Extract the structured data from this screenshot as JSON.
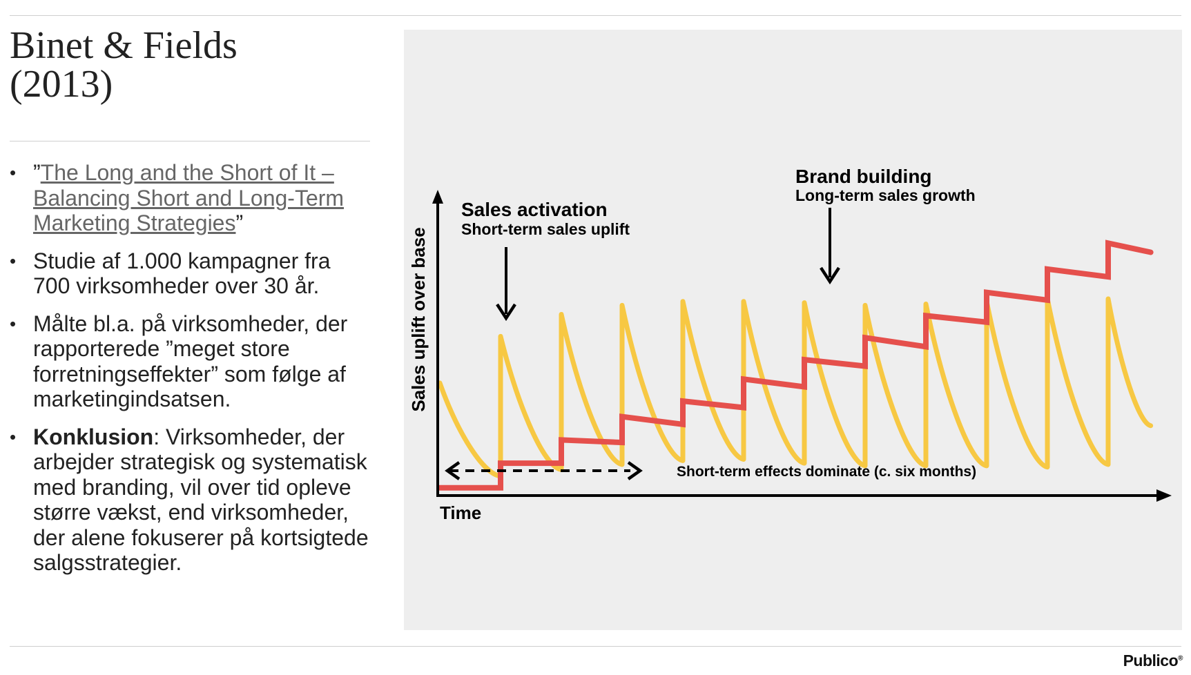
{
  "slide": {
    "title_line1": "Binet & Fields",
    "title_line2": "(2013)",
    "bullets": [
      {
        "open_quote": "”",
        "link_text": "The Long and the Short of It – Balancing Short and Long-Term Marketing Strategies",
        "close_quote": "”"
      },
      {
        "text": "Studie af 1.000 kampagner fra 700 virksomheder over 30 år."
      },
      {
        "text": "Målte bl.a. på virksomheder, der rapporterede ”meget store forretningseffekter” som følge af marketingindsatsen."
      },
      {
        "bold": "Konklusion",
        "text": ": Virksomheder, der arbejder strategisk og systematisk med branding, vil over tid opleve større vækst, end virksomheder, der alene fokuserer på kortsigtede salgsstrategier."
      }
    ],
    "logo": "Publico",
    "logo_mark": "®"
  },
  "chart_data": {
    "type": "line",
    "title": "",
    "xlabel": "Time",
    "ylabel": "Sales uplift over base",
    "colors": {
      "short_term": "#f7c843",
      "long_term": "#e5504c",
      "background": "#eeeeee",
      "axis": "#000000"
    },
    "annotations": {
      "sales_activation_title": "Sales activation",
      "sales_activation_sub": "Short-term sales uplift",
      "brand_building_title": "Brand building",
      "brand_building_sub": "Long-term sales growth",
      "dashed_arrow_label": "Short-term effects dominate (c. six months)"
    },
    "series": [
      {
        "name": "Short-term sales uplift",
        "x": [
          0,
          1,
          1,
          2,
          2,
          3,
          3,
          4,
          4,
          5,
          5,
          6,
          6,
          7,
          7,
          8,
          8,
          9,
          9,
          10,
          10,
          11,
          11,
          11.7
        ],
        "values": [
          4.35,
          0.75,
          6.15,
          1.0,
          7.0,
          1.2,
          7.35,
          1.35,
          7.5,
          1.4,
          7.5,
          1.25,
          7.45,
          1.15,
          7.35,
          1.15,
          7.4,
          1.15,
          7.5,
          1.1,
          7.6,
          1.2,
          7.6,
          2.7
        ]
      },
      {
        "name": "Long-term sales growth",
        "x": [
          0,
          1,
          1,
          2,
          2,
          3,
          3,
          4,
          4,
          5,
          5,
          6,
          6,
          7,
          7,
          8,
          8,
          9,
          9,
          10,
          10,
          11,
          11,
          11.7
        ],
        "values": [
          0.3,
          0.3,
          1.25,
          1.25,
          2.15,
          2.05,
          3.05,
          2.75,
          3.65,
          3.4,
          4.5,
          4.2,
          5.25,
          5.0,
          6.1,
          5.75,
          6.95,
          6.7,
          7.85,
          7.55,
          8.75,
          8.45,
          9.75,
          9.4
        ]
      }
    ],
    "xlim": [
      0,
      12
    ],
    "ylim": [
      0,
      10.7
    ]
  }
}
